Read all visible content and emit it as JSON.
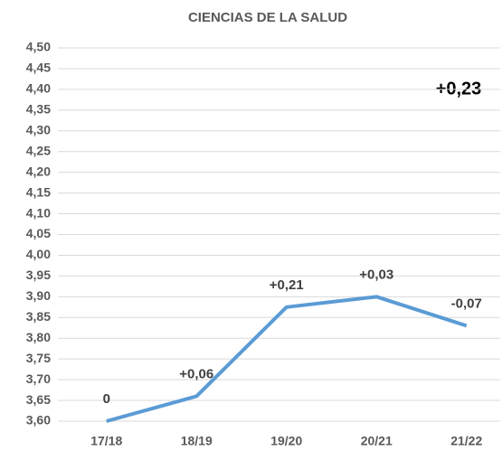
{
  "chart_data": {
    "type": "line",
    "title": "CIENCIAS DE LA SALUD",
    "categories": [
      "17/18",
      "18/19",
      "19/20",
      "20/21",
      "21/22"
    ],
    "series": [
      {
        "color": "#5b9bd5",
        "values": [
          3.6,
          3.66,
          3.875,
          3.9,
          3.83
        ]
      }
    ],
    "annotations": [
      "0",
      "+0,06",
      "+0,21",
      "+0,03",
      "-0,07"
    ],
    "summary_annotation": "+0,23",
    "ylim": [
      3.6,
      4.5
    ],
    "yticks": [
      {
        "value": 3.6,
        "label": "3,60"
      },
      {
        "value": 3.65,
        "label": "3,65"
      },
      {
        "value": 3.7,
        "label": "3,70"
      },
      {
        "value": 3.75,
        "label": "3,75"
      },
      {
        "value": 3.8,
        "label": "3,80"
      },
      {
        "value": 3.85,
        "label": "3,85"
      },
      {
        "value": 3.9,
        "label": "3,90"
      },
      {
        "value": 3.95,
        "label": "3,95"
      },
      {
        "value": 4.0,
        "label": "4,00"
      },
      {
        "value": 4.05,
        "label": "4,05"
      },
      {
        "value": 4.1,
        "label": "4,10"
      },
      {
        "value": 4.15,
        "label": "4,15"
      },
      {
        "value": 4.2,
        "label": "4,20"
      },
      {
        "value": 4.25,
        "label": "4,25"
      },
      {
        "value": 4.3,
        "label": "4,30"
      },
      {
        "value": 4.35,
        "label": "4,35"
      },
      {
        "value": 4.4,
        "label": "4,40"
      },
      {
        "value": 4.45,
        "label": "4,45"
      },
      {
        "value": 4.5,
        "label": "4,50"
      }
    ],
    "grid": true
  }
}
